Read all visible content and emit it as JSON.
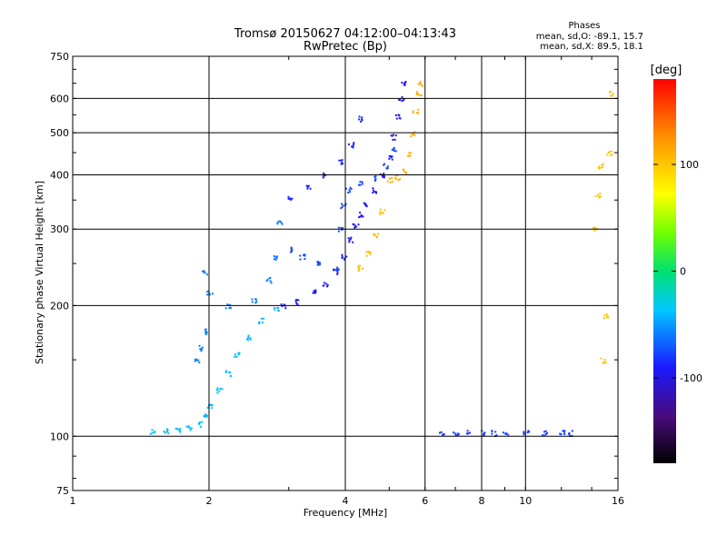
{
  "chart_data": {
    "type": "scatter",
    "title": "Tromsø 20150627 04:12:00–04:13:43",
    "subtitle": "RwPretec (Bp)",
    "xlabel": "Frequency [MHz]",
    "ylabel": "Stationary phase Virtual Height [km]",
    "x_scale": "log",
    "y_scale": "log",
    "xlim": [
      1,
      16
    ],
    "ylim": [
      75,
      750
    ],
    "x_ticks": [
      1,
      2,
      4,
      6,
      8,
      10,
      16
    ],
    "x_tick_labels": [
      "1",
      "2",
      "4",
      "6",
      "8",
      "10",
      "16"
    ],
    "y_ticks": [
      75,
      100,
      200,
      300,
      400,
      500,
      600,
      750
    ],
    "y_tick_labels": [
      "75",
      "100",
      "200",
      "300",
      "400",
      "500",
      "600",
      "750"
    ],
    "grid": true,
    "legend": {
      "title": "Phases",
      "lines": [
        "mean, sd,O: -89.1, 15.7",
        "mean, sd,X: 89.5, 18.1"
      ],
      "position": "top-right"
    },
    "colorbar": {
      "label": "[deg]",
      "range": [
        -180,
        180
      ],
      "ticks": [
        100,
        0,
        -100
      ],
      "tick_labels": [
        "100",
        "0",
        "-100"
      ],
      "colormap": "rainbow (black-purple-blue-cyan-green-yellow-orange-red)"
    },
    "series": [
      {
        "traces": [
          {
            "phase": -40,
            "points": [
              [
                1.5,
                103
              ],
              [
                1.6,
                103
              ],
              [
                1.7,
                104
              ],
              [
                1.8,
                105
              ],
              [
                1.9,
                107
              ],
              [
                1.95,
                112
              ],
              [
                2.0,
                118
              ],
              [
                2.1,
                128
              ],
              [
                2.2,
                140
              ],
              [
                2.3,
                155
              ],
              [
                2.45,
                170
              ],
              [
                2.6,
                185
              ],
              [
                2.8,
                198
              ]
            ]
          },
          {
            "phase": -95,
            "points": [
              [
                2.9,
                201
              ],
              [
                3.1,
                205
              ],
              [
                3.4,
                215
              ],
              [
                3.6,
                225
              ],
              [
                3.8,
                240
              ],
              [
                3.95,
                260
              ],
              [
                4.1,
                285
              ],
              [
                4.2,
                305
              ],
              [
                4.3,
                325
              ],
              [
                4.4,
                345
              ],
              [
                4.6,
                370
              ],
              [
                4.8,
                400
              ],
              [
                5.0,
                440
              ],
              [
                5.1,
                490
              ],
              [
                5.2,
                545
              ],
              [
                5.3,
                600
              ],
              [
                5.35,
                650
              ]
            ]
          },
          {
            "phase": -75,
            "points": [
              [
                3.0,
                270
              ],
              [
                3.2,
                260
              ],
              [
                3.5,
                250
              ],
              [
                3.8,
                245
              ],
              [
                3.9,
                300
              ],
              [
                3.95,
                340
              ],
              [
                4.05,
                370
              ],
              [
                4.3,
                385
              ],
              [
                4.6,
                395
              ],
              [
                4.9,
                420
              ],
              [
                5.1,
                460
              ]
            ]
          },
          {
            "phase": -85,
            "points": [
              [
                3.0,
                355
              ],
              [
                3.3,
                375
              ],
              [
                3.6,
                400
              ],
              [
                3.9,
                430
              ],
              [
                4.1,
                470
              ],
              [
                4.3,
                540
              ]
            ]
          },
          {
            "phase": -60,
            "points": [
              [
                1.95,
                175
              ],
              [
                1.9,
                160
              ],
              [
                1.88,
                150
              ],
              [
                1.95,
                240
              ],
              [
                2.0,
                215
              ],
              [
                2.2,
                200
              ],
              [
                2.5,
                205
              ],
              [
                2.7,
                230
              ],
              [
                2.8,
                260
              ],
              [
                2.85,
                310
              ]
            ]
          },
          {
            "phase": 110,
            "points": [
              [
                5.0,
                390
              ],
              [
                5.2,
                395
              ],
              [
                5.4,
                410
              ],
              [
                5.5,
                450
              ],
              [
                5.6,
                500
              ],
              [
                5.7,
                560
              ],
              [
                5.8,
                620
              ],
              [
                5.85,
                650
              ]
            ]
          },
          {
            "phase": 105,
            "points": [
              [
                4.3,
                245
              ],
              [
                4.5,
                265
              ],
              [
                4.65,
                290
              ],
              [
                4.8,
                330
              ]
            ]
          },
          {
            "phase": -80,
            "points": [
              [
                6.5,
                102
              ],
              [
                7.0,
                102
              ],
              [
                7.5,
                102
              ],
              [
                8.0,
                102
              ],
              [
                8.5,
                102
              ],
              [
                9.0,
                102
              ],
              [
                10.0,
                102
              ],
              [
                11.0,
                102
              ],
              [
                12.0,
                102
              ],
              [
                12.5,
                102
              ]
            ]
          },
          {
            "phase": 100,
            "points": [
              [
                14.2,
                300
              ],
              [
                14.4,
                360
              ],
              [
                14.6,
                420
              ],
              [
                14.8,
                150
              ],
              [
                15.0,
                190
              ],
              [
                15.3,
                450
              ],
              [
                15.5,
                620
              ]
            ]
          }
        ]
      }
    ]
  }
}
